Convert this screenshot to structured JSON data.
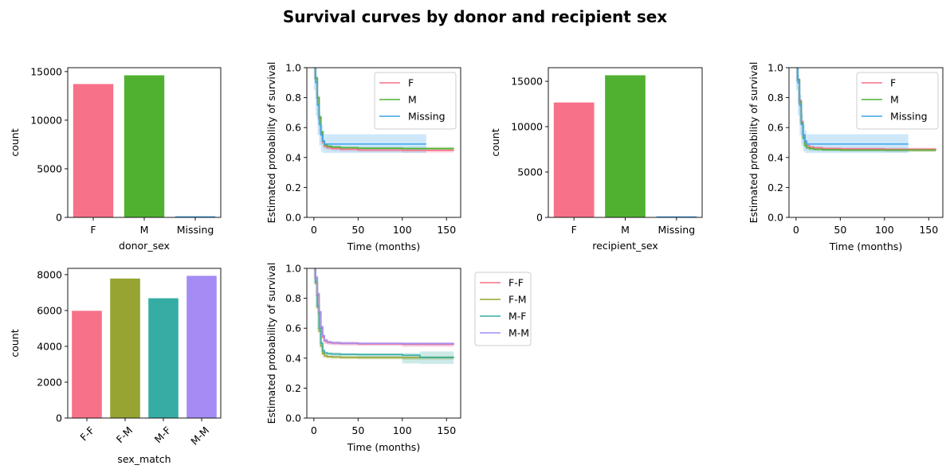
{
  "figure": {
    "title": "Survival curves by donor and recipient sex"
  },
  "colors": {
    "F": "#f77189",
    "M": "#50b131",
    "Missing": "#3ba3ec",
    "F-F": "#f77189",
    "F-M": "#97a431",
    "M-F": "#36ada4",
    "M-M": "#a48cf4"
  },
  "chart_data": [
    {
      "id": "donor_count",
      "type": "bar",
      "categories": [
        "F",
        "M",
        "Missing"
      ],
      "values": [
        13750,
        14650,
        150
      ],
      "xlabel": "donor_sex",
      "ylabel": "count",
      "ylim": [
        0,
        15400
      ],
      "yticks": [
        0,
        5000,
        10000,
        15000
      ]
    },
    {
      "id": "donor_survival",
      "type": "line",
      "xlabel": "Time (months)",
      "ylabel": "Estimated probability of survival",
      "xlim": [
        -8,
        166
      ],
      "ylim": [
        0,
        1
      ],
      "xticks": [
        0,
        50,
        100,
        150
      ],
      "yticks": [
        0.0,
        0.2,
        0.4,
        0.6,
        0.8,
        1.0
      ],
      "legend": {
        "position": "top-right"
      },
      "series": [
        {
          "name": "F",
          "x": [
            0,
            2,
            4,
            6,
            8,
            10,
            12,
            15,
            20,
            30,
            50,
            100,
            158
          ],
          "y": [
            1.0,
            0.93,
            0.8,
            0.66,
            0.56,
            0.5,
            0.475,
            0.465,
            0.46,
            0.455,
            0.45,
            0.448,
            0.445
          ],
          "ci_low": [
            1.0,
            0.92,
            0.79,
            0.65,
            0.55,
            0.49,
            0.465,
            0.455,
            0.45,
            0.445,
            0.44,
            0.437,
            0.432
          ],
          "ci_high": [
            1.0,
            0.94,
            0.81,
            0.67,
            0.57,
            0.51,
            0.485,
            0.475,
            0.47,
            0.465,
            0.46,
            0.459,
            0.458
          ]
        },
        {
          "name": "M",
          "x": [
            0,
            2,
            4,
            6,
            8,
            10,
            12,
            15,
            20,
            30,
            50,
            100,
            158
          ],
          "y": [
            1.0,
            0.93,
            0.8,
            0.67,
            0.57,
            0.51,
            0.485,
            0.475,
            0.47,
            0.465,
            0.462,
            0.46,
            0.458
          ],
          "ci_low": [
            1.0,
            0.92,
            0.79,
            0.66,
            0.56,
            0.5,
            0.475,
            0.465,
            0.46,
            0.455,
            0.452,
            0.449,
            0.446
          ],
          "ci_high": [
            1.0,
            0.94,
            0.81,
            0.68,
            0.58,
            0.52,
            0.495,
            0.485,
            0.48,
            0.475,
            0.472,
            0.471,
            0.47
          ]
        },
        {
          "name": "Missing",
          "x": [
            0,
            2,
            4,
            6,
            8,
            10,
            12,
            15,
            20,
            30,
            50,
            100,
            127
          ],
          "y": [
            1.0,
            0.9,
            0.75,
            0.62,
            0.55,
            0.51,
            0.49,
            0.49,
            0.49,
            0.49,
            0.49,
            0.49,
            0.49
          ],
          "ci_low": [
            1.0,
            0.85,
            0.68,
            0.55,
            0.48,
            0.44,
            0.43,
            0.43,
            0.43,
            0.43,
            0.43,
            0.43,
            0.43
          ],
          "ci_high": [
            1.0,
            0.95,
            0.82,
            0.69,
            0.62,
            0.58,
            0.555,
            0.555,
            0.555,
            0.555,
            0.555,
            0.555,
            0.555
          ]
        }
      ]
    },
    {
      "id": "recipient_count",
      "type": "bar",
      "categories": [
        "F",
        "M",
        "Missing"
      ],
      "values": [
        12700,
        15700,
        150
      ],
      "xlabel": "recipient_sex",
      "ylabel": "count",
      "ylim": [
        0,
        16500
      ],
      "yticks": [
        0,
        5000,
        10000,
        15000
      ]
    },
    {
      "id": "recipient_survival",
      "type": "line",
      "xlabel": "Time (months)",
      "ylabel": "Estimated probability of survival",
      "xlim": [
        -8,
        166
      ],
      "ylim": [
        0,
        1
      ],
      "xticks": [
        0,
        50,
        100,
        150
      ],
      "yticks": [
        0.0,
        0.2,
        0.4,
        0.6,
        0.8,
        1.0
      ],
      "legend": {
        "position": "top-right"
      },
      "series": [
        {
          "name": "F",
          "x": [
            0,
            2,
            4,
            6,
            8,
            10,
            12,
            15,
            20,
            30,
            50,
            100,
            158
          ],
          "y": [
            1.0,
            0.92,
            0.78,
            0.64,
            0.55,
            0.5,
            0.48,
            0.47,
            0.465,
            0.46,
            0.458,
            0.455,
            0.452
          ],
          "ci_low": [
            1.0,
            0.91,
            0.77,
            0.63,
            0.54,
            0.49,
            0.47,
            0.46,
            0.455,
            0.45,
            0.447,
            0.444,
            0.44
          ],
          "ci_high": [
            1.0,
            0.93,
            0.79,
            0.65,
            0.56,
            0.51,
            0.49,
            0.48,
            0.475,
            0.47,
            0.469,
            0.466,
            0.464
          ]
        },
        {
          "name": "M",
          "x": [
            0,
            2,
            4,
            6,
            8,
            10,
            12,
            15,
            20,
            30,
            50,
            100,
            158
          ],
          "y": [
            1.0,
            0.92,
            0.77,
            0.63,
            0.53,
            0.48,
            0.465,
            0.46,
            0.455,
            0.452,
            0.45,
            0.45,
            0.448
          ],
          "ci_low": [
            1.0,
            0.91,
            0.76,
            0.62,
            0.52,
            0.47,
            0.455,
            0.45,
            0.445,
            0.442,
            0.44,
            0.439,
            0.437
          ],
          "ci_high": [
            1.0,
            0.93,
            0.78,
            0.64,
            0.54,
            0.49,
            0.475,
            0.47,
            0.465,
            0.462,
            0.46,
            0.461,
            0.459
          ]
        },
        {
          "name": "Missing",
          "x": [
            0,
            2,
            4,
            6,
            8,
            10,
            12,
            15,
            20,
            30,
            50,
            100,
            127
          ],
          "y": [
            1.0,
            0.9,
            0.75,
            0.62,
            0.55,
            0.51,
            0.49,
            0.49,
            0.49,
            0.49,
            0.49,
            0.49,
            0.49
          ],
          "ci_low": [
            1.0,
            0.85,
            0.68,
            0.55,
            0.48,
            0.44,
            0.43,
            0.43,
            0.43,
            0.43,
            0.43,
            0.43,
            0.43
          ],
          "ci_high": [
            1.0,
            0.95,
            0.82,
            0.69,
            0.62,
            0.58,
            0.555,
            0.555,
            0.555,
            0.555,
            0.555,
            0.555,
            0.555
          ]
        }
      ]
    },
    {
      "id": "match_count",
      "type": "bar",
      "categories": [
        "F-F",
        "F-M",
        "M-F",
        "M-M"
      ],
      "values": [
        6000,
        7800,
        6700,
        7950
      ],
      "xlabel": "sex_match",
      "ylabel": "count",
      "ylim": [
        0,
        8350
      ],
      "yticks": [
        0,
        2000,
        4000,
        6000,
        8000
      ],
      "rotate_ticks": true
    },
    {
      "id": "match_survival",
      "type": "line",
      "xlabel": "Time (months)",
      "ylabel": "Estimated probability of survival",
      "xlim": [
        -8,
        166
      ],
      "ylim": [
        0,
        1
      ],
      "xticks": [
        0,
        50,
        100,
        150
      ],
      "yticks": [
        0.0,
        0.2,
        0.4,
        0.6,
        0.8,
        1.0
      ],
      "legend": {
        "position": "outside-right"
      },
      "series": [
        {
          "name": "F-F",
          "x": [
            0,
            2,
            4,
            6,
            8,
            10,
            12,
            15,
            20,
            30,
            50,
            100,
            158
          ],
          "y": [
            1.0,
            0.94,
            0.82,
            0.7,
            0.6,
            0.54,
            0.515,
            0.505,
            0.5,
            0.498,
            0.495,
            0.493,
            0.49
          ],
          "ci_low": [
            1.0,
            0.93,
            0.81,
            0.69,
            0.59,
            0.53,
            0.505,
            0.495,
            0.49,
            0.487,
            0.484,
            0.482,
            0.476
          ],
          "ci_high": [
            1.0,
            0.95,
            0.83,
            0.71,
            0.61,
            0.55,
            0.525,
            0.515,
            0.51,
            0.509,
            0.506,
            0.504,
            0.504
          ]
        },
        {
          "name": "F-M",
          "x": [
            0,
            2,
            4,
            6,
            8,
            10,
            12,
            15,
            20,
            30,
            50,
            100,
            158
          ],
          "y": [
            1.0,
            0.9,
            0.74,
            0.58,
            0.48,
            0.43,
            0.415,
            0.41,
            0.408,
            0.405,
            0.404,
            0.403,
            0.402
          ],
          "ci_low": [
            1.0,
            0.89,
            0.73,
            0.57,
            0.47,
            0.42,
            0.405,
            0.4,
            0.398,
            0.395,
            0.393,
            0.391,
            0.388
          ],
          "ci_high": [
            1.0,
            0.91,
            0.75,
            0.59,
            0.49,
            0.44,
            0.425,
            0.42,
            0.418,
            0.415,
            0.415,
            0.415,
            0.416
          ]
        },
        {
          "name": "M-F",
          "x": [
            0,
            2,
            4,
            6,
            8,
            10,
            12,
            15,
            20,
            30,
            50,
            100,
            120,
            158
          ],
          "y": [
            1.0,
            0.91,
            0.75,
            0.6,
            0.5,
            0.45,
            0.435,
            0.43,
            0.428,
            0.425,
            0.424,
            0.42,
            0.405,
            0.403
          ],
          "ci_low": [
            1.0,
            0.9,
            0.74,
            0.59,
            0.49,
            0.44,
            0.425,
            0.42,
            0.418,
            0.415,
            0.413,
            0.405,
            0.365,
            0.362
          ],
          "ci_high": [
            1.0,
            0.92,
            0.76,
            0.61,
            0.51,
            0.46,
            0.445,
            0.44,
            0.438,
            0.435,
            0.435,
            0.435,
            0.445,
            0.445
          ]
        },
        {
          "name": "M-M",
          "x": [
            0,
            2,
            4,
            6,
            8,
            10,
            12,
            15,
            20,
            30,
            50,
            100,
            158
          ],
          "y": [
            1.0,
            0.94,
            0.83,
            0.71,
            0.61,
            0.55,
            0.52,
            0.508,
            0.503,
            0.5,
            0.498,
            0.497,
            0.495
          ],
          "ci_low": [
            1.0,
            0.93,
            0.82,
            0.7,
            0.6,
            0.54,
            0.51,
            0.498,
            0.493,
            0.49,
            0.488,
            0.486,
            0.482
          ],
          "ci_high": [
            1.0,
            0.95,
            0.84,
            0.72,
            0.62,
            0.56,
            0.53,
            0.518,
            0.513,
            0.51,
            0.508,
            0.508,
            0.508
          ]
        }
      ]
    }
  ]
}
